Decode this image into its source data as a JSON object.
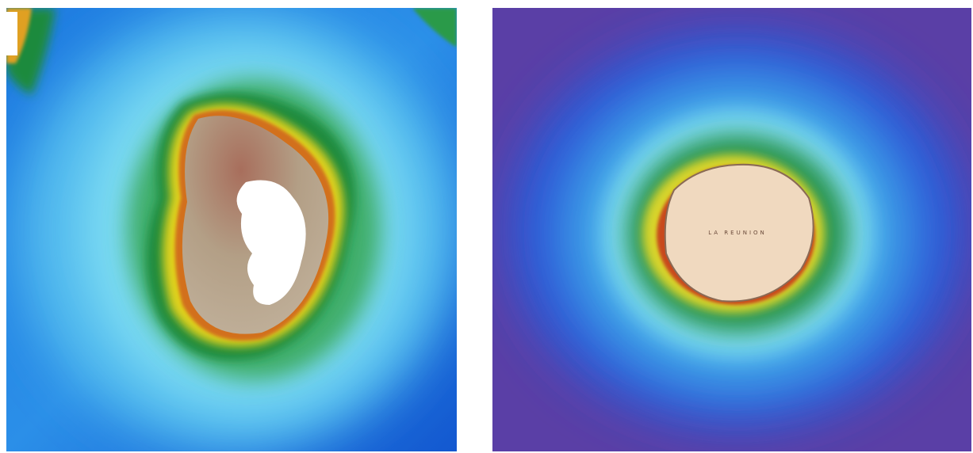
{
  "right_map": {
    "island_label": "LA REUNION"
  }
}
